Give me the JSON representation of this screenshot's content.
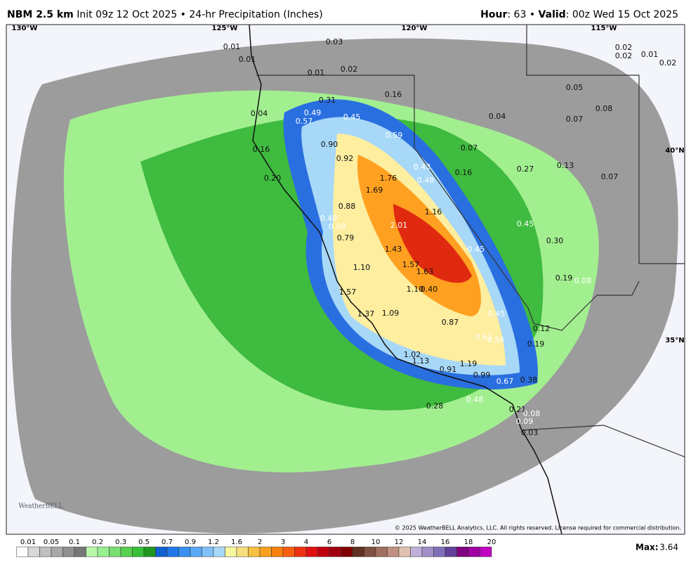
{
  "header": {
    "model": "NBM 2.5 km",
    "info": "Init 09z 12 Oct 2025 • 24-hr Precipitation (Inches)",
    "hour_label": "Hour",
    "hour": ": 63 •",
    "valid_label": "Valid",
    "valid": ": 00z Wed 15 Oct 2025"
  },
  "map": {
    "grid_labels": [
      "130°W",
      "125°W",
      "120°W",
      "115°W",
      "40°N",
      "35°N"
    ],
    "values": [
      "0.01",
      "0.01",
      "0.03",
      "0.01",
      "0.02",
      "0.16",
      "0.31",
      "0.49",
      "0.57",
      "0.45",
      "0.04",
      "0.04",
      "0.05",
      "0.08",
      "0.07",
      "0.02",
      "0.02",
      "0.01",
      "0.02",
      "0.16",
      "0.90",
      "0.59",
      "0.92",
      "0.07",
      "0.43",
      "0.16",
      "0.27",
      "0.13",
      "0.07",
      "0.20",
      "1.76",
      "0.48",
      "1.69",
      "0.88",
      "1.16",
      "0.49",
      "0.59",
      "2.01",
      "0.45",
      "0.79",
      "0.30",
      "1.43",
      "0.45",
      "1.10",
      "1.57",
      "1.63",
      "0.19",
      "0.08",
      "1.57",
      "1.10",
      "0.40",
      "0.45",
      "1.37",
      "1.09",
      "0.87",
      "0.12",
      "0.61",
      "0.56",
      "0.19",
      "1.02",
      "1.13",
      "1.19",
      "0.91",
      "0.99",
      "0.67",
      "0.38",
      "0.48",
      "0.28",
      "0.21",
      "0.08",
      "0.09",
      "0.03"
    ]
  },
  "legend": {
    "labels": [
      "0.01",
      "0.05",
      "0.1",
      "0.2",
      "0.3",
      "0.5",
      "0.7",
      "0.9",
      "1.2",
      "1.6",
      "2",
      "3",
      "4",
      "6",
      "8",
      "10",
      "12",
      "14",
      "16",
      "18",
      "20"
    ],
    "colors": [
      "#ffffff",
      "#d8d8d8",
      "#c0c0c0",
      "#a8a8a8",
      "#909090",
      "#787878",
      "#b8f8a8",
      "#98f090",
      "#78e070",
      "#58d050",
      "#38c038",
      "#209820",
      "#1060d0",
      "#2078e8",
      "#3890f0",
      "#58a8f8",
      "#80c0f8",
      "#a8d8f8",
      "#f8f8a0",
      "#f8e080",
      "#f8c040",
      "#f8a020",
      "#f88010",
      "#f86010",
      "#f03010",
      "#e01010",
      "#c00010",
      "#a00010",
      "#800000",
      "#603020",
      "#805040",
      "#a07060",
      "#c09080",
      "#e0c0b0",
      "#c0b0d8",
      "#a090c8",
      "#8070b8",
      "#604098",
      "#800080",
      "#a000a0",
      "#c000c0"
    ]
  },
  "max": {
    "label": "Max:",
    "value": "3.64"
  },
  "copyright": "© 2025 WeatherBELL Analytics, LLC. All rights reserved. License required for commercial distribution.",
  "logo": "WeatherBELL"
}
